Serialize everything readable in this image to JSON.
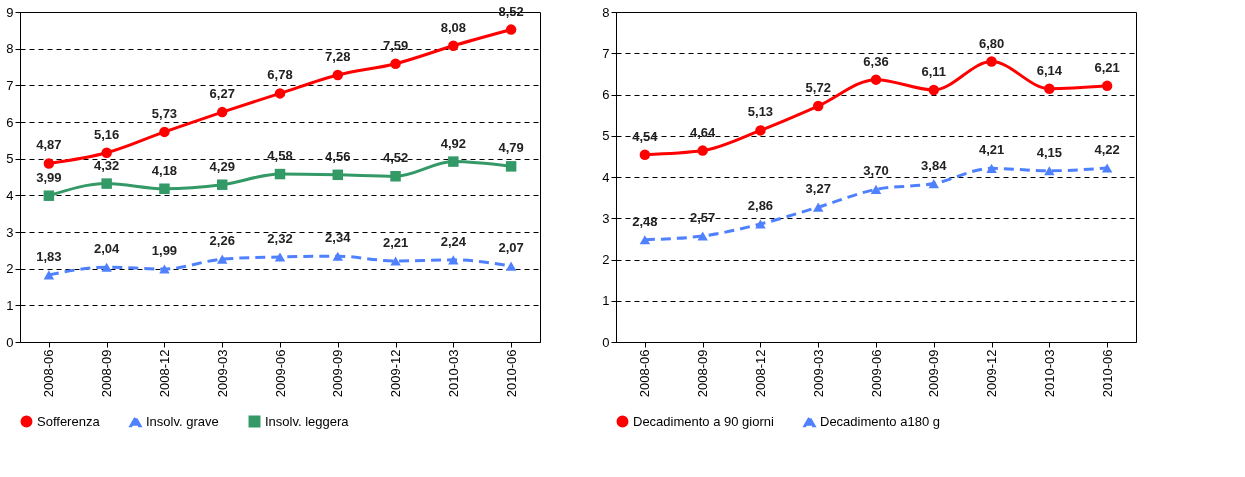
{
  "chart_data": [
    {
      "type": "line",
      "categories": [
        "2008-06",
        "2008-09",
        "2008-12",
        "2009-03",
        "2009-06",
        "2009-09",
        "2009-12",
        "2010-03",
        "2010-06"
      ],
      "ylim": [
        0,
        9
      ],
      "yticks": [
        0,
        1,
        2,
        3,
        4,
        5,
        6,
        7,
        8,
        9
      ],
      "grid": "y",
      "legend": "bottom",
      "series": [
        {
          "name": "Sofferenza",
          "color": "#ff0000",
          "marker": "circle",
          "line_style": "solid",
          "values": [
            4.87,
            5.16,
            5.73,
            6.27,
            6.78,
            7.28,
            7.59,
            8.08,
            8.52
          ],
          "value_labels": [
            "4,87",
            "5,16",
            "5,73",
            "6,27",
            "6,78",
            "7,28",
            "7,59",
            "8,08",
            "8,52"
          ]
        },
        {
          "name": "Insolv. grave",
          "color": "#4f81ff",
          "marker": "triangle",
          "line_style": "dashed",
          "values": [
            1.83,
            2.04,
            1.99,
            2.26,
            2.32,
            2.34,
            2.21,
            2.24,
            2.07
          ],
          "value_labels": [
            "1,83",
            "2,04",
            "1,99",
            "2,26",
            "2,32",
            "2,34",
            "2,21",
            "2,24",
            "2,07"
          ]
        },
        {
          "name": "Insolv. leggera",
          "color": "#339966",
          "marker": "square",
          "line_style": "solid",
          "values": [
            3.99,
            4.32,
            4.18,
            4.29,
            4.58,
            4.56,
            4.52,
            4.92,
            4.79
          ],
          "value_labels": [
            "3,99",
            "4,32",
            "4,18",
            "4,29",
            "4,58",
            "4,56",
            "4,52",
            "4,92",
            "4,79"
          ]
        }
      ]
    },
    {
      "type": "line",
      "categories": [
        "2008-06",
        "2008-09",
        "2008-12",
        "2009-03",
        "2009-06",
        "2009-09",
        "2009-12",
        "2010-03",
        "2010-06"
      ],
      "ylim": [
        0,
        8
      ],
      "yticks": [
        0,
        1,
        2,
        3,
        4,
        5,
        6,
        7,
        8
      ],
      "grid": "y",
      "legend": "bottom",
      "series": [
        {
          "name": "Decadimento a 90 giorni",
          "color": "#ff0000",
          "marker": "circle",
          "line_style": "solid",
          "values": [
            4.54,
            4.64,
            5.13,
            5.72,
            6.36,
            6.11,
            6.8,
            6.14,
            6.21
          ],
          "value_labels": [
            "4,54",
            "4,64",
            "5,13",
            "5,72",
            "6,36",
            "6,11",
            "6,80",
            "6,14",
            "6,21"
          ]
        },
        {
          "name": "Decadimento a180 g",
          "color": "#4f81ff",
          "marker": "triangle",
          "line_style": "dashed",
          "values": [
            2.48,
            2.57,
            2.86,
            3.27,
            3.7,
            3.84,
            4.21,
            4.15,
            4.22
          ],
          "value_labels": [
            "2,48",
            "2,57",
            "2,86",
            "3,27",
            "3,70",
            "3,84",
            "4,21",
            "4,15",
            "4,22"
          ]
        }
      ]
    }
  ]
}
